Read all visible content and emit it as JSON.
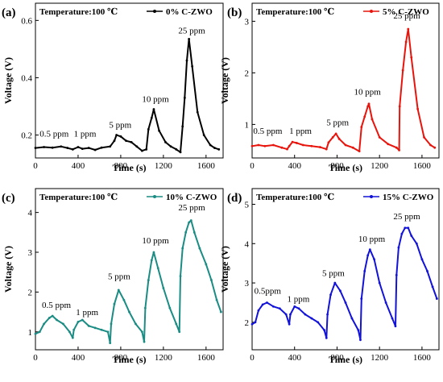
{
  "chart_data": [
    {
      "type": "line",
      "panel_label": "(a)",
      "annotation": "Temperature:100 ℃",
      "xlabel": "Time (s)",
      "ylabel": "Voltage (V)",
      "xlim": [
        0,
        1760
      ],
      "ylim": [
        0.12,
        0.66
      ],
      "xticks": [
        0,
        400,
        800,
        1200,
        1600
      ],
      "yticks": [
        0.2,
        0.4,
        0.6
      ],
      "ytick_labels": [
        "0.2",
        "0.4",
        "0.6"
      ],
      "grid": false,
      "legend_position": "top-right",
      "peak_labels": [
        {
          "text": "0.5 ppm",
          "x": 40,
          "y": 0.195
        },
        {
          "text": "1 ppm",
          "x": 360,
          "y": 0.195
        },
        {
          "text": "5 ppm",
          "x": 690,
          "y": 0.225
        },
        {
          "text": "10 ppm",
          "x": 1000,
          "y": 0.315
        },
        {
          "text": "25 ppm",
          "x": 1340,
          "y": 0.555
        }
      ],
      "series": [
        {
          "name": "0% C-ZWO",
          "color": "#000000",
          "x": [
            0,
            80,
            160,
            240,
            300,
            350,
            400,
            440,
            500,
            560,
            620,
            700,
            740,
            760,
            800,
            850,
            900,
            950,
            1000,
            1040,
            1060,
            1090,
            1110,
            1160,
            1220,
            1270,
            1320,
            1360,
            1380,
            1400,
            1420,
            1440,
            1470,
            1520,
            1580,
            1640,
            1680,
            1720
          ],
          "y": [
            0.155,
            0.158,
            0.156,
            0.16,
            0.155,
            0.15,
            0.158,
            0.152,
            0.155,
            0.148,
            0.156,
            0.16,
            0.18,
            0.2,
            0.195,
            0.18,
            0.175,
            0.16,
            0.145,
            0.15,
            0.22,
            0.26,
            0.29,
            0.215,
            0.175,
            0.16,
            0.15,
            0.14,
            0.23,
            0.33,
            0.46,
            0.535,
            0.44,
            0.28,
            0.2,
            0.165,
            0.155,
            0.15
          ]
        }
      ]
    },
    {
      "type": "line",
      "panel_label": "(b)",
      "annotation": "Temperature:100 ℃",
      "xlabel": "Time (s)",
      "ylabel": "Voltage (V)",
      "xlim": [
        0,
        1760
      ],
      "ylim": [
        0.35,
        3.35
      ],
      "xticks": [
        0,
        400,
        800,
        1200,
        1600
      ],
      "yticks": [
        1,
        2,
        3
      ],
      "ytick_labels": [
        "1",
        "2",
        "3"
      ],
      "grid": false,
      "legend_position": "top-right",
      "peak_labels": [
        {
          "text": "0.5 ppm",
          "x": 10,
          "y": 0.82
        },
        {
          "text": "1 ppm",
          "x": 350,
          "y": 0.82
        },
        {
          "text": "5 ppm",
          "x": 700,
          "y": 0.98
        },
        {
          "text": "10 ppm",
          "x": 960,
          "y": 1.58
        },
        {
          "text": "25 ppm",
          "x": 1330,
          "y": 3.05
        }
      ],
      "series": [
        {
          "name": "5% C-ZWO",
          "color": "#e8140c",
          "x": [
            0,
            60,
            120,
            200,
            280,
            330,
            350,
            380,
            420,
            480,
            560,
            640,
            700,
            720,
            760,
            790,
            820,
            880,
            950,
            1010,
            1030,
            1060,
            1090,
            1100,
            1130,
            1200,
            1280,
            1360,
            1385,
            1390,
            1420,
            1450,
            1470,
            1500,
            1560,
            1620,
            1680,
            1720
          ],
          "y": [
            0.58,
            0.6,
            0.58,
            0.6,
            0.55,
            0.52,
            0.58,
            0.66,
            0.64,
            0.6,
            0.58,
            0.56,
            0.52,
            0.65,
            0.75,
            0.82,
            0.72,
            0.6,
            0.55,
            0.48,
            0.95,
            1.15,
            1.35,
            1.4,
            1.1,
            0.75,
            0.62,
            0.55,
            0.5,
            1.35,
            2.05,
            2.6,
            2.85,
            2.3,
            1.3,
            0.75,
            0.6,
            0.55
          ]
        }
      ]
    },
    {
      "type": "line",
      "panel_label": "(c)",
      "annotation": "Temperature:100 ℃",
      "xlabel": "Time (s)",
      "ylabel": "Voltage (V)",
      "xlim": [
        0,
        1760
      ],
      "ylim": [
        0.55,
        4.6
      ],
      "xticks": [
        0,
        400,
        800,
        1200,
        1600
      ],
      "yticks": [
        1,
        2,
        3,
        4
      ],
      "ytick_labels": [
        "1",
        "2",
        "3",
        "4"
      ],
      "grid": false,
      "legend_position": "top-right",
      "peak_labels": [
        {
          "text": "0.5 ppm",
          "x": 60,
          "y": 1.6
        },
        {
          "text": "1 ppm",
          "x": 380,
          "y": 1.42
        },
        {
          "text": "5 ppm",
          "x": 680,
          "y": 2.32
        },
        {
          "text": "10 ppm",
          "x": 1000,
          "y": 3.22
        },
        {
          "text": "25 ppm",
          "x": 1340,
          "y": 4.05
        }
      ],
      "series": [
        {
          "name": "10% C-ZWO",
          "color": "#1a8c84",
          "x": [
            0,
            40,
            80,
            130,
            160,
            200,
            260,
            320,
            350,
            360,
            400,
            440,
            500,
            560,
            620,
            680,
            700,
            710,
            740,
            780,
            830,
            880,
            940,
            1000,
            1020,
            1030,
            1060,
            1090,
            1110,
            1150,
            1200,
            1260,
            1320,
            1350,
            1360,
            1380,
            1410,
            1440,
            1460,
            1490,
            1540,
            1600,
            1650,
            1700,
            1740
          ],
          "y": [
            0.95,
            1.0,
            1.2,
            1.35,
            1.4,
            1.3,
            1.2,
            1.0,
            0.85,
            1.05,
            1.25,
            1.3,
            1.15,
            1.1,
            1.05,
            1.0,
            0.72,
            1.2,
            1.7,
            2.05,
            1.8,
            1.5,
            1.2,
            1.0,
            0.75,
            1.6,
            2.3,
            2.8,
            3.0,
            2.6,
            2.1,
            1.6,
            1.2,
            1.0,
            2.4,
            3.1,
            3.5,
            3.75,
            3.8,
            3.5,
            3.1,
            2.7,
            2.3,
            1.8,
            1.5
          ]
        }
      ]
    },
    {
      "type": "line",
      "panel_label": "(d)",
      "annotation": "Temperature:100 ℃",
      "xlabel": "Time (s)",
      "ylabel": "Voltage (V)",
      "xlim": [
        0,
        1760
      ],
      "ylim": [
        1.3,
        5.4
      ],
      "xticks": [
        0,
        400,
        800,
        1200,
        1600
      ],
      "yticks": [
        2,
        3,
        4,
        5
      ],
      "ytick_labels": [
        "2",
        "3",
        "4",
        "5"
      ],
      "grid": false,
      "legend_position": "top-right",
      "peak_labels": [
        {
          "text": "0.5ppm",
          "x": 20,
          "y": 2.72
        },
        {
          "text": "1 ppm",
          "x": 330,
          "y": 2.52
        },
        {
          "text": "5 ppm",
          "x": 660,
          "y": 3.18
        },
        {
          "text": "10 ppm",
          "x": 1000,
          "y": 4.05
        },
        {
          "text": "25 ppm",
          "x": 1330,
          "y": 4.62
        }
      ],
      "series": [
        {
          "name": "15% C-ZWO",
          "color": "#1212d8",
          "x": [
            0,
            30,
            60,
            100,
            140,
            200,
            260,
            320,
            350,
            360,
            400,
            440,
            500,
            560,
            620,
            680,
            700,
            710,
            740,
            780,
            830,
            880,
            940,
            1000,
            1020,
            1030,
            1060,
            1090,
            1110,
            1150,
            1200,
            1260,
            1320,
            1350,
            1360,
            1380,
            1410,
            1440,
            1470,
            1500,
            1550,
            1600,
            1650,
            1700,
            1740
          ],
          "y": [
            1.95,
            2.0,
            2.3,
            2.45,
            2.5,
            2.4,
            2.35,
            2.2,
            1.95,
            2.2,
            2.4,
            2.35,
            2.2,
            2.1,
            2.0,
            1.8,
            1.6,
            2.2,
            2.7,
            3.0,
            2.8,
            2.5,
            2.1,
            1.8,
            1.55,
            2.6,
            3.3,
            3.7,
            3.85,
            3.6,
            3.0,
            2.5,
            2.1,
            1.9,
            3.2,
            3.9,
            4.25,
            4.4,
            4.4,
            4.2,
            4.0,
            3.6,
            3.3,
            2.9,
            2.6
          ]
        }
      ]
    }
  ]
}
